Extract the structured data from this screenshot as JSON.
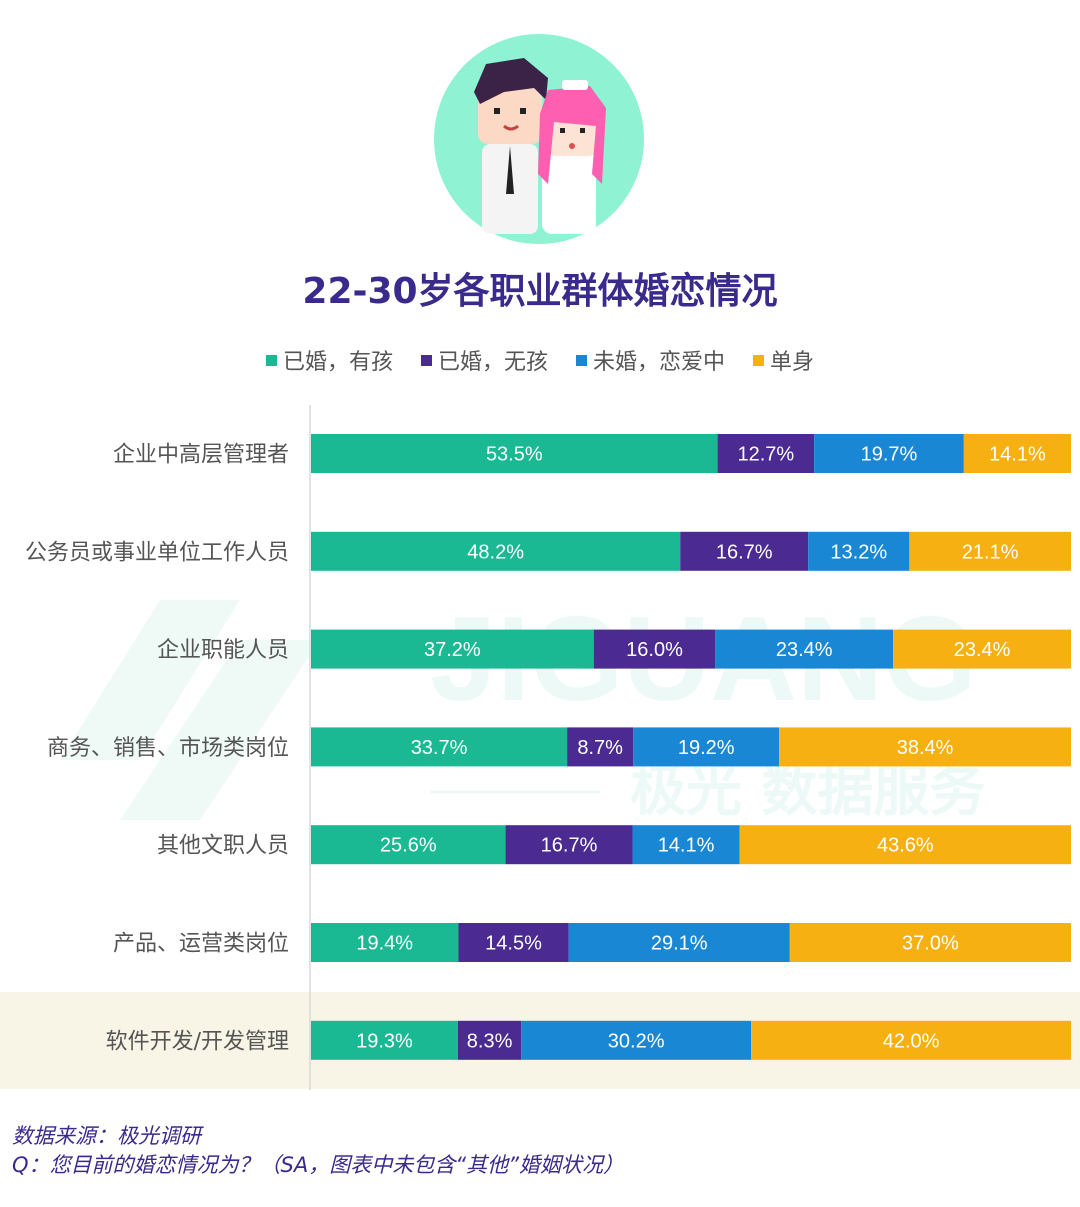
{
  "title": "22-30岁各职业群体婚恋情况",
  "legend": [
    {
      "label": "已婚，有孩",
      "color": "#1bb894"
    },
    {
      "label": "已婚，无孩",
      "color": "#4b2a91"
    },
    {
      "label": "未婚，恋爱中",
      "color": "#1a87d4"
    },
    {
      "label": "单身",
      "color": "#f7b011"
    }
  ],
  "watermark": {
    "latin": "JIGUANG",
    "cjk": "极光 数据服务"
  },
  "highlight_color": "#f8f5e6",
  "chart_data": {
    "type": "bar",
    "orientation": "horizontal",
    "stacked": true,
    "categories": [
      "企业中高层管理者",
      "公务员或事业单位工作人员",
      "企业职能人员",
      "商务、销售、市场类岗位",
      "其他文职人员",
      "产品、运营类岗位",
      "软件开发/开发管理"
    ],
    "series": [
      {
        "name": "已婚，有孩",
        "color": "#1bb894",
        "values": [
          53.5,
          48.2,
          37.2,
          33.7,
          25.6,
          19.4,
          19.3
        ]
      },
      {
        "name": "已婚，无孩",
        "color": "#4b2a91",
        "values": [
          12.7,
          16.7,
          16.0,
          8.7,
          16.7,
          14.5,
          8.3
        ]
      },
      {
        "name": "未婚，恋爱中",
        "color": "#1a87d4",
        "values": [
          19.7,
          13.2,
          23.4,
          19.2,
          14.1,
          29.1,
          30.2
        ]
      },
      {
        "name": "单身",
        "color": "#f7b011",
        "values": [
          14.1,
          21.1,
          23.4,
          38.4,
          43.6,
          37.0,
          42.0
        ]
      }
    ],
    "data_labels": [
      [
        "53.5%",
        "48.2%",
        "37.2%",
        "33.7%",
        "25.6%",
        "19.4%",
        "19.3%"
      ],
      [
        "12.7%",
        "16.7%",
        "16.0%",
        "8.7%",
        "16.7%",
        "14.5%",
        "8.3%"
      ],
      [
        "19.7%",
        "13.2%",
        "23.4%",
        "19.2%",
        "14.1%",
        "29.1%",
        "30.2%"
      ],
      [
        "14.1%",
        "21.1%",
        "23.4%",
        "38.4%",
        "43.6%",
        "37.0%",
        "42.0%"
      ]
    ],
    "highlighted_category": "软件开发/开发管理"
  },
  "footer": {
    "source": "数据来源：极光调研",
    "question": "Q：您目前的婚恋情况为？（SA，图表中未包含“其他”婚姻状况）"
  }
}
